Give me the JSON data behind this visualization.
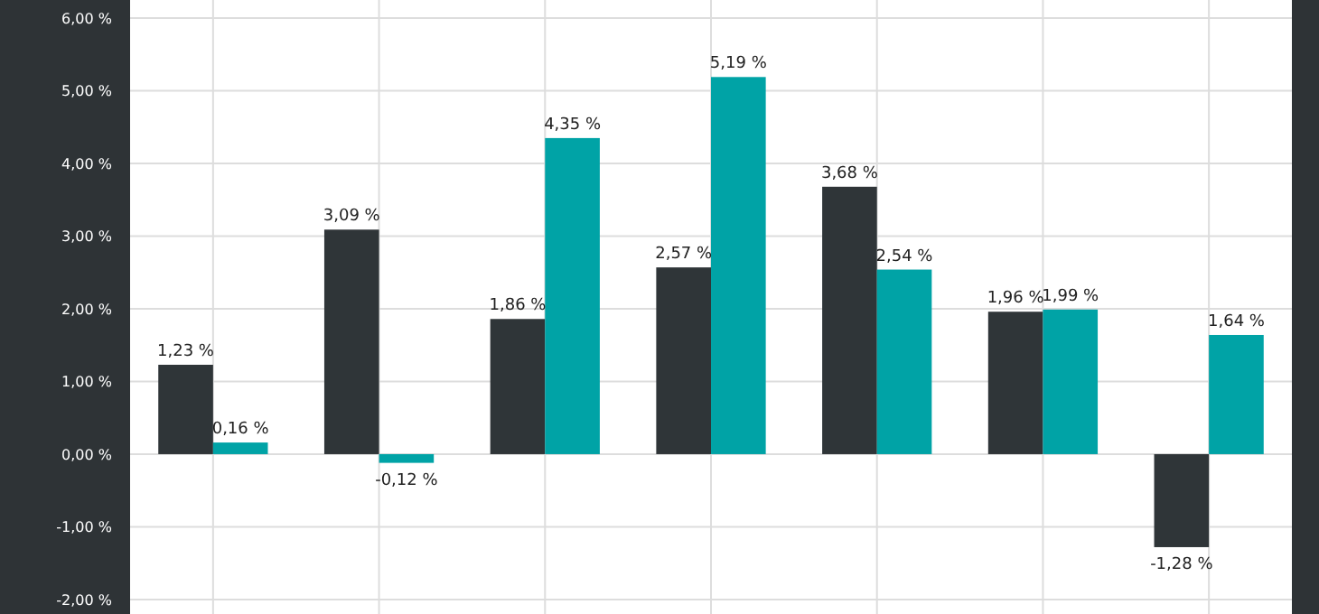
{
  "chart_data": {
    "type": "bar",
    "categories": [
      null,
      null,
      null,
      null,
      null,
      null,
      null
    ],
    "series": [
      {
        "color": "#2f3538",
        "values": [
          1.23,
          3.09,
          1.86,
          2.57,
          3.68,
          1.96,
          -1.28
        ],
        "value_labels": [
          "1,23 %",
          "3,09 %",
          "1,86 %",
          "2,57 %",
          "3,68 %",
          "1,96 %",
          "-1,28 %"
        ]
      },
      {
        "color": "#00a3a6",
        "values": [
          0.16,
          -0.12,
          4.35,
          5.19,
          2.54,
          1.99,
          1.64
        ],
        "value_labels": [
          "0,16 %",
          "-0,12 %",
          "4,35 %",
          "5,19 %",
          "2,54 %",
          "1,99 %",
          "1,64 %"
        ]
      }
    ],
    "ylim": [
      -2.2,
      6.25
    ],
    "yticks": [
      {
        "value": -2,
        "label": "-2,00 %"
      },
      {
        "value": -1,
        "label": "-1,00 %"
      },
      {
        "value": 0,
        "label": "0,00 %"
      },
      {
        "value": 1,
        "label": "1,00 %"
      },
      {
        "value": 2,
        "label": "2,00 %"
      },
      {
        "value": 3,
        "label": "3,00 %"
      },
      {
        "value": 4,
        "label": "4,00 %"
      },
      {
        "value": 5,
        "label": "5,00 %"
      },
      {
        "value": 6,
        "label": "6,00 %"
      }
    ],
    "grid": true
  }
}
